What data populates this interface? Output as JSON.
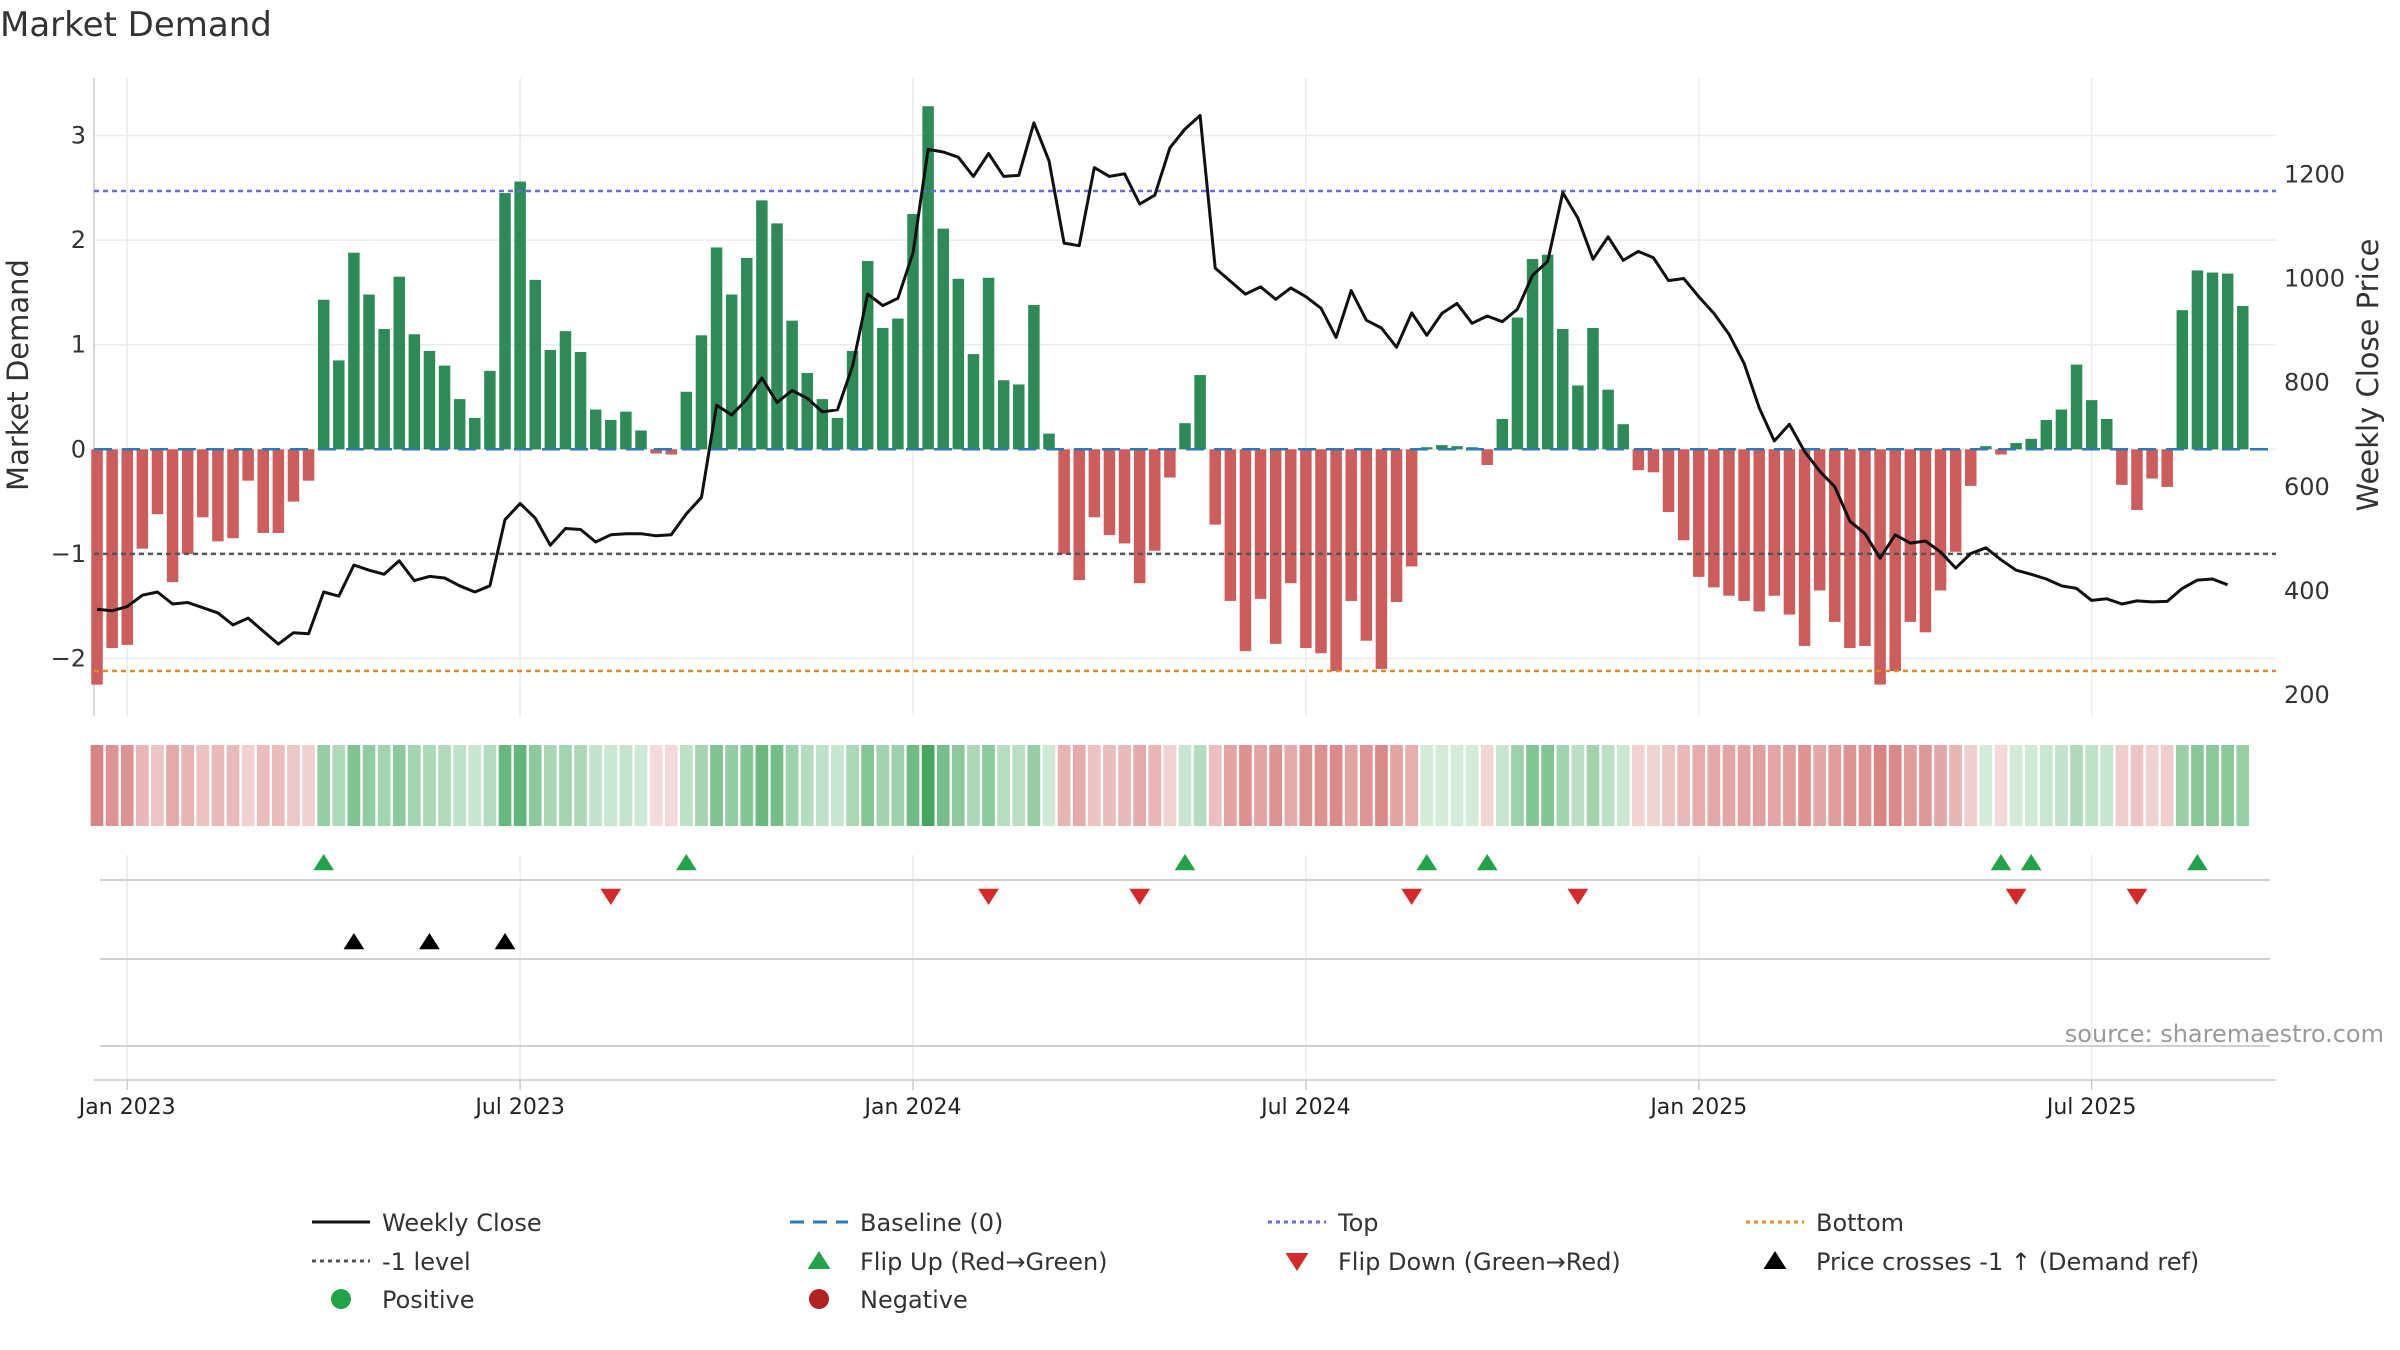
{
  "chart_data": {
    "type": "bar",
    "title": "Market Demand",
    "ylabel_left": "Market Demand",
    "ylabel_right": "Weekly Close Price",
    "xlabel": "",
    "ylim_left": [
      -2.55,
      3.55
    ],
    "ylim_right": [
      160,
      1385
    ],
    "yticks_left": [
      3,
      2,
      1,
      0,
      -1,
      -2
    ],
    "ytick_labels_left": [
      "3",
      "2",
      "1",
      "0",
      "−1",
      "−2"
    ],
    "yticks_right": [
      1200,
      1000,
      800,
      600,
      400,
      200
    ],
    "ytick_labels_right": [
      "1200",
      "1000",
      "800",
      "600",
      "400",
      "200"
    ],
    "x_ticks": [
      0,
      26,
      52,
      78,
      104,
      130
    ],
    "x_tick_labels": [
      "Jan 2023",
      "Jul 2023",
      "Jan 2024",
      "Jul 2024",
      "Jan 2025",
      "Jul 2025"
    ],
    "x_range": [
      -2.2,
      142.2
    ],
    "week_start_index": -2,
    "reference_lines": {
      "top": 2.47,
      "bottom": -2.12,
      "minus_one": -1,
      "baseline": 0
    },
    "colors": {
      "positive": "#2e8b57",
      "negative": "#cd5c5c",
      "price": "#111111",
      "top": "#6a6ad8",
      "bottom": "#e08a2a",
      "minus_one": "#555555",
      "baseline": "#2a7ab8",
      "flip_up": "#22a34a",
      "flip_down": "#d42a2a",
      "cross": "#000000",
      "legend_positive": "#22a34a",
      "legend_negative": "#b22222",
      "grid": "#ebebeb",
      "axis": "#cccccc",
      "text": "#333333",
      "source_text": "#999999",
      "heat_positive_base": [
        66,
        166,
        92
      ],
      "heat_negative_base": [
        205,
        92,
        92
      ]
    },
    "series": [
      {
        "name": "Market Demand",
        "values": [
          -2.25,
          -1.9,
          -1.87,
          -0.95,
          -0.62,
          -1.27,
          -1.0,
          -0.65,
          -0.88,
          -0.85,
          -0.3,
          -0.8,
          -0.8,
          -0.5,
          -0.3,
          1.43,
          0.85,
          1.88,
          1.48,
          1.15,
          1.65,
          1.1,
          0.94,
          0.8,
          0.48,
          0.3,
          0.75,
          2.45,
          2.56,
          1.62,
          0.95,
          1.13,
          0.93,
          0.38,
          0.28,
          0.36,
          0.18,
          -0.04,
          -0.05,
          0.55,
          1.09,
          1.93,
          1.48,
          1.83,
          2.38,
          2.16,
          1.23,
          0.73,
          0.48,
          0.3,
          0.94,
          1.8,
          1.16,
          1.25,
          2.25,
          3.28,
          2.11,
          1.63,
          0.91,
          1.64,
          0.66,
          0.62,
          1.38,
          0.15,
          -1.0,
          -1.25,
          -0.65,
          -0.82,
          -0.9,
          -1.28,
          -0.97,
          -0.27,
          0.25,
          0.71,
          -0.72,
          -1.45,
          -1.93,
          -1.43,
          -1.86,
          -1.28,
          -1.9,
          -1.95,
          -2.12,
          -1.45,
          -1.83,
          -2.1,
          -1.46,
          -1.12,
          0.02,
          0.04,
          0.03,
          0.02,
          -0.15,
          0.29,
          1.26,
          1.82,
          1.86,
          1.15,
          0.61,
          1.16,
          0.57,
          0.24,
          -0.2,
          -0.22,
          -0.6,
          -0.87,
          -1.22,
          -1.32,
          -1.4,
          -1.45,
          -1.55,
          -1.4,
          -1.58,
          -1.88,
          -1.35,
          -1.65,
          -1.9,
          -1.88,
          -2.25,
          -2.12,
          -1.65,
          -1.75,
          -1.35,
          -0.98,
          -0.35,
          0.03,
          -0.05,
          0.06,
          0.1,
          0.28,
          0.38,
          0.81,
          0.47,
          0.29,
          -0.34,
          -0.58,
          -0.28,
          -0.36,
          1.33,
          1.71,
          1.69,
          1.68,
          1.37
        ]
      },
      {
        "name": "Weekly Close",
        "values": [
          365,
          362,
          370,
          392,
          398,
          375,
          378,
          368,
          358,
          335,
          348,
          323,
          298,
          320,
          318,
          398,
          390,
          450,
          440,
          432,
          458,
          420,
          428,
          425,
          410,
          398,
          410,
          537,
          568,
          540,
          488,
          520,
          518,
          494,
          508,
          510,
          510,
          506,
          508,
          548,
          580,
          757,
          738,
          768,
          809,
          762,
          785,
          770,
          744,
          748,
          832,
          970,
          948,
          962,
          1049,
          1248,
          1243,
          1233,
          1196,
          1240,
          1196,
          1198,
          1299,
          1226,
          1068,
          1063,
          1213,
          1196,
          1201,
          1143,
          1160,
          1251,
          1287,
          1313,
          1020,
          995,
          970,
          984,
          960,
          982,
          965,
          943,
          887,
          977,
          920,
          905,
          868,
          934,
          891,
          933,
          952,
          914,
          928,
          917,
          941,
          1006,
          1033,
          1165,
          1116,
          1037,
          1080,
          1035,
          1052,
          1040,
          996,
          1000,
          965,
          933,
          893,
          837,
          752,
          688,
          720,
          668,
          630,
          600,
          534,
          510,
          463,
          508,
          492,
          496,
          475,
          444,
          472,
          483,
          460,
          440,
          432,
          423,
          410,
          405,
          382,
          385,
          375,
          381,
          379,
          380,
          405,
          421,
          423,
          412
        ]
      }
    ],
    "flip_up_weeks": [
      13,
      37,
      70,
      86,
      90,
      124,
      126,
      137
    ],
    "flip_down_weeks": [
      32,
      57,
      67,
      85,
      96,
      125,
      133
    ],
    "price_cross_weeks": [
      15,
      20,
      25
    ],
    "source_text": "source: sharemaestro.com",
    "legend": [
      {
        "label": "Weekly Close",
        "symbol": "line-solid",
        "color": "#111111"
      },
      {
        "label": "Baseline (0)",
        "symbol": "line-dash",
        "color": "#2a7ab8"
      },
      {
        "label": "Top",
        "symbol": "line-dot",
        "color": "#6a6ad8"
      },
      {
        "label": "Bottom",
        "symbol": "line-dot",
        "color": "#e08a2a"
      },
      {
        "label": "-1 level",
        "symbol": "line-dot",
        "color": "#555555"
      },
      {
        "label": "Flip Up (Red→Green)",
        "symbol": "triangle-up",
        "color": "#22a34a"
      },
      {
        "label": "Flip Down (Green→Red)",
        "symbol": "triangle-down",
        "color": "#d42a2a"
      },
      {
        "label": "Price crosses -1 ↑ (Demand ref)",
        "symbol": "triangle-up",
        "color": "#000000"
      },
      {
        "label": "Positive",
        "symbol": "circle",
        "color": "#22a34a"
      },
      {
        "label": "Negative",
        "symbol": "circle",
        "color": "#b22222"
      }
    ],
    "legend_placement": "bottom"
  }
}
